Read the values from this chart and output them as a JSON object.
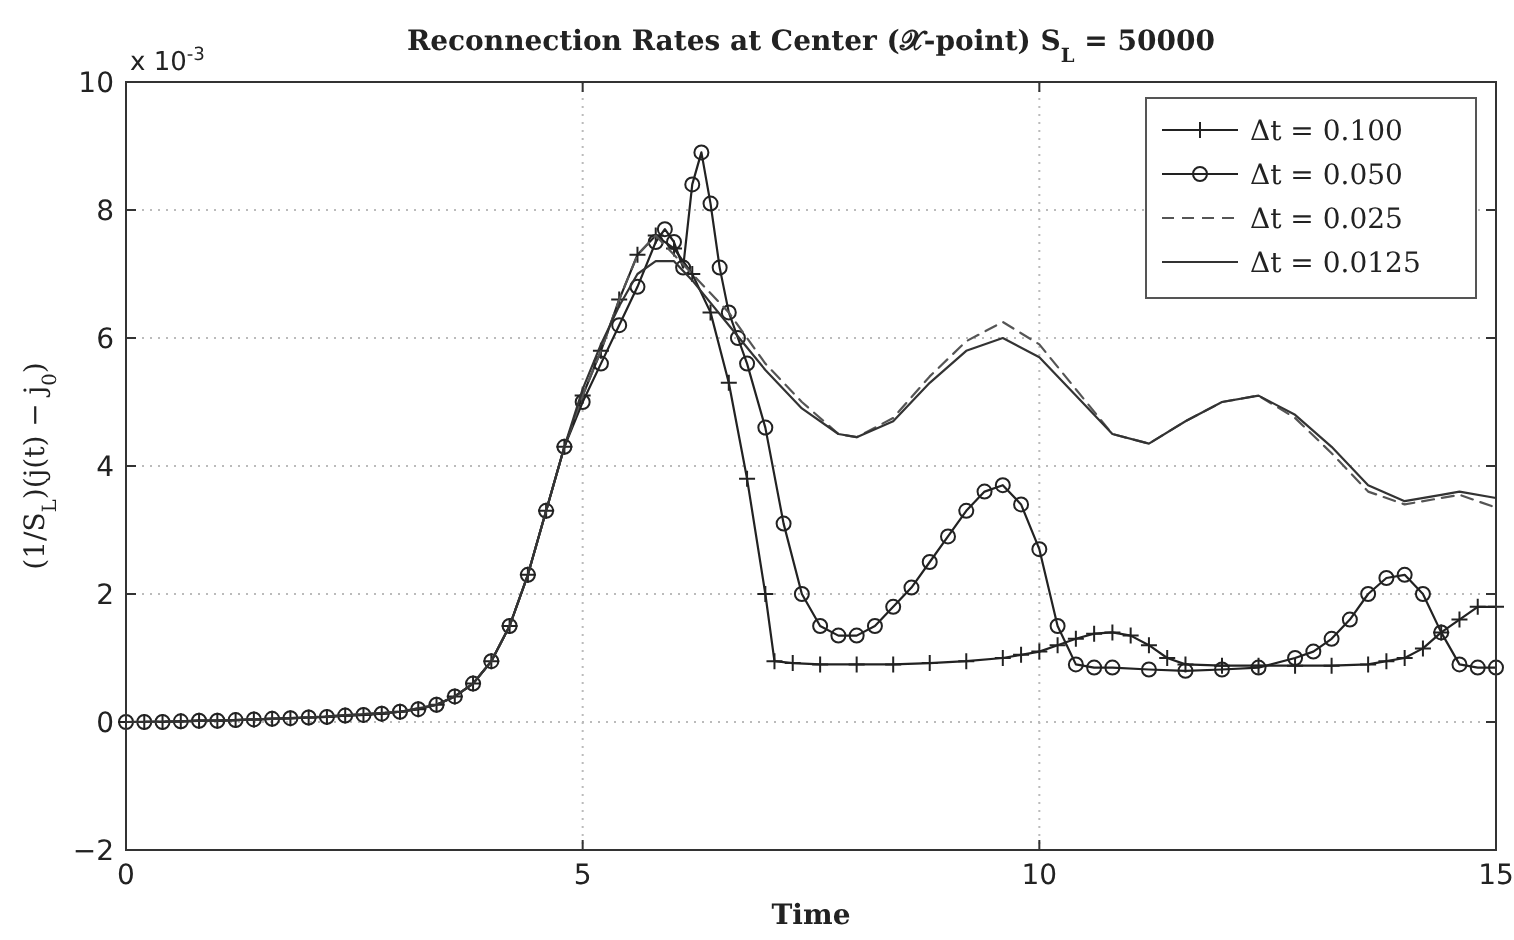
{
  "chart_data": {
    "type": "line",
    "title": "Reconnection Rates at Center (𝒳-point) S$_{L}$ = 50000",
    "xlabel": "Time",
    "ylabel": "(1/S$_{L}$)(j(t) − j$_{0}$)",
    "annotations": [
      "x 10$^{-3}$"
    ],
    "xlim": [
      0,
      15
    ],
    "ylim": [
      -2,
      10
    ],
    "xticks": [
      0,
      5,
      10,
      15
    ],
    "yticks": [
      -2,
      0,
      2,
      4,
      6,
      8,
      10
    ],
    "grid": true,
    "legend": "top right",
    "series": [
      {
        "name": "Δt = 0.100",
        "color": "#222222",
        "marker": "cross",
        "line_style": "solid",
        "x": [
          0,
          0.2,
          0.4,
          0.6,
          0.8,
          1,
          1.2,
          1.4,
          1.6,
          1.8,
          2,
          2.2,
          2.4,
          2.6,
          2.8,
          3,
          3.2,
          3.4,
          3.6,
          3.8,
          4,
          4.2,
          4.4,
          4.6,
          4.8,
          5,
          5.2,
          5.4,
          5.6,
          5.8,
          6,
          6.2,
          6.4,
          6.6,
          6.8,
          7,
          7.1,
          7.3,
          7.6,
          8,
          8.4,
          8.8,
          9.2,
          9.6,
          9.8,
          10,
          10.2,
          10.4,
          10.6,
          10.8,
          11,
          11.2,
          11.4,
          11.6,
          12,
          12.4,
          12.8,
          13.2,
          13.6,
          13.8,
          14,
          14.2,
          14.4,
          14.6,
          14.8,
          15
        ],
        "values": [
          0,
          0,
          0,
          0.01,
          0.02,
          0.02,
          0.03,
          0.04,
          0.05,
          0.06,
          0.07,
          0.08,
          0.1,
          0.11,
          0.13,
          0.16,
          0.2,
          0.27,
          0.4,
          0.6,
          0.95,
          1.5,
          2.3,
          3.3,
          4.3,
          5.1,
          5.8,
          6.6,
          7.3,
          7.6,
          7.4,
          7.0,
          6.4,
          5.3,
          3.8,
          2.0,
          0.95,
          0.92,
          0.9,
          0.9,
          0.9,
          0.92,
          0.95,
          1.0,
          1.05,
          1.1,
          1.2,
          1.3,
          1.38,
          1.4,
          1.35,
          1.2,
          1.0,
          0.9,
          0.88,
          0.88,
          0.88,
          0.88,
          0.9,
          0.95,
          1.0,
          1.15,
          1.4,
          1.6,
          1.8,
          1.8
        ]
      },
      {
        "name": "Δt = 0.050",
        "color": "#222222",
        "marker": "circle",
        "line_style": "solid",
        "x": [
          0,
          0.2,
          0.4,
          0.6,
          0.8,
          1,
          1.2,
          1.4,
          1.6,
          1.8,
          2,
          2.2,
          2.4,
          2.6,
          2.8,
          3,
          3.2,
          3.4,
          3.6,
          3.8,
          4,
          4.2,
          4.4,
          4.6,
          4.8,
          5,
          5.2,
          5.4,
          5.6,
          5.8,
          5.9,
          6,
          6.1,
          6.2,
          6.3,
          6.4,
          6.5,
          6.6,
          6.7,
          6.8,
          7,
          7.2,
          7.4,
          7.6,
          7.8,
          8,
          8.2,
          8.4,
          8.6,
          8.8,
          9,
          9.2,
          9.4,
          9.6,
          9.8,
          10,
          10.2,
          10.4,
          10.6,
          10.8,
          11.2,
          11.6,
          12,
          12.4,
          12.8,
          13,
          13.2,
          13.4,
          13.6,
          13.8,
          14,
          14.2,
          14.4,
          14.6,
          14.8,
          15
        ],
        "values": [
          0,
          0,
          0,
          0.01,
          0.02,
          0.02,
          0.03,
          0.04,
          0.05,
          0.06,
          0.07,
          0.08,
          0.1,
          0.11,
          0.13,
          0.16,
          0.2,
          0.27,
          0.4,
          0.6,
          0.95,
          1.5,
          2.3,
          3.3,
          4.3,
          5.0,
          5.6,
          6.2,
          6.8,
          7.5,
          7.7,
          7.5,
          7.1,
          8.4,
          8.9,
          8.1,
          7.1,
          6.4,
          6.0,
          5.6,
          4.6,
          3.1,
          2.0,
          1.5,
          1.35,
          1.35,
          1.5,
          1.8,
          2.1,
          2.5,
          2.9,
          3.3,
          3.6,
          3.7,
          3.4,
          2.7,
          1.5,
          0.9,
          0.85,
          0.85,
          0.82,
          0.8,
          0.82,
          0.85,
          1.0,
          1.1,
          1.3,
          1.6,
          2.0,
          2.25,
          2.3,
          2.0,
          1.4,
          0.9,
          0.85,
          0.85
        ]
      },
      {
        "name": "Δt = 0.025",
        "color": "#555555",
        "marker": "none",
        "line_style": "dashed",
        "x": [
          0,
          1,
          2,
          3,
          3.4,
          3.6,
          3.8,
          4,
          4.2,
          4.4,
          4.6,
          4.8,
          5,
          5.2,
          5.4,
          5.6,
          5.8,
          6,
          6.2,
          6.6,
          7,
          7.4,
          7.8,
          8,
          8.4,
          8.8,
          9.2,
          9.6,
          10,
          10.4,
          10.8,
          11.2,
          11.6,
          12,
          12.4,
          12.8,
          13.2,
          13.6,
          14,
          14.4,
          14.6,
          15
        ],
        "values": [
          0,
          0.02,
          0.07,
          0.16,
          0.27,
          0.4,
          0.6,
          0.95,
          1.5,
          2.3,
          3.3,
          4.3,
          5.1,
          5.8,
          6.6,
          7.3,
          7.6,
          7.3,
          7.0,
          6.4,
          5.6,
          5.0,
          4.5,
          4.45,
          4.75,
          5.4,
          5.95,
          6.25,
          5.9,
          5.2,
          4.5,
          4.35,
          4.7,
          5.0,
          5.1,
          4.75,
          4.2,
          3.6,
          3.4,
          3.5,
          3.55,
          3.35
        ]
      },
      {
        "name": "Δt = 0.0125",
        "color": "#333333",
        "marker": "none",
        "line_style": "solid",
        "x": [
          0,
          1,
          2,
          3,
          3.4,
          3.6,
          3.8,
          4,
          4.2,
          4.4,
          4.6,
          4.8,
          5,
          5.2,
          5.4,
          5.6,
          5.8,
          6,
          6.2,
          6.6,
          7,
          7.4,
          7.8,
          8,
          8.4,
          8.8,
          9.2,
          9.6,
          10,
          10.4,
          10.8,
          11.2,
          11.6,
          12,
          12.4,
          12.8,
          13.2,
          13.6,
          14,
          14.4,
          14.6,
          15
        ],
        "values": [
          0,
          0.02,
          0.07,
          0.16,
          0.27,
          0.4,
          0.6,
          0.95,
          1.5,
          2.3,
          3.3,
          4.3,
          5.2,
          5.9,
          6.5,
          7.0,
          7.2,
          7.2,
          6.9,
          6.2,
          5.5,
          4.9,
          4.5,
          4.45,
          4.7,
          5.3,
          5.8,
          6.0,
          5.7,
          5.1,
          4.5,
          4.35,
          4.7,
          5.0,
          5.1,
          4.8,
          4.3,
          3.7,
          3.45,
          3.55,
          3.6,
          3.5
        ]
      }
    ]
  }
}
